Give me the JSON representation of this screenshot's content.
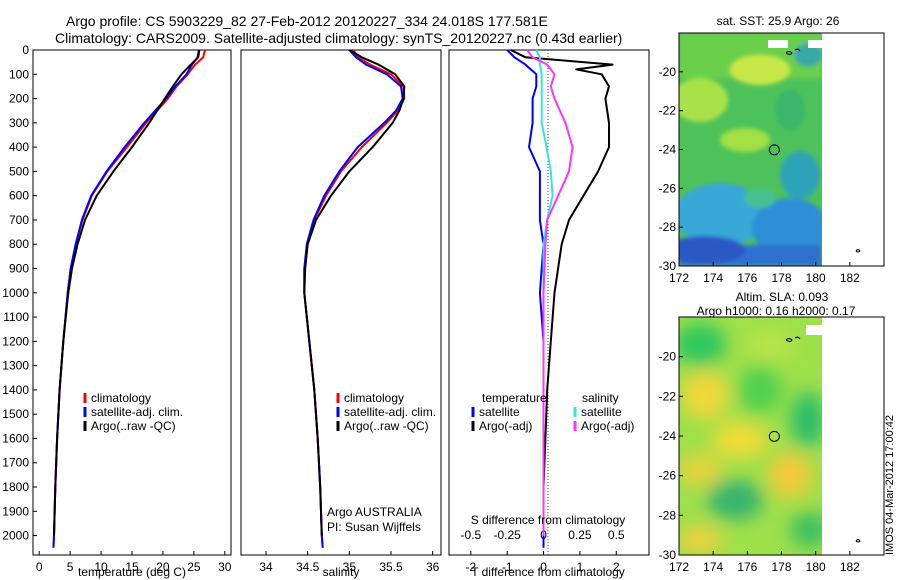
{
  "header": {
    "line1": "Argo profile: CS 5903229_82 27-Feb-2012 20120227_334 24.018S 177.581E",
    "line2": "Climatology: CARS2009. Satellite-adjusted climatology: synTS_20120227.nc (0.43d earlier)"
  },
  "side_label": "IMOS 04-Mar-2012 17:00:42",
  "colors": {
    "climatology": "#ff0000",
    "satellite": "#0000ff",
    "argo": "#000000",
    "salinity_satellite": "#33e6e6",
    "salinity_argo": "#ff33ff"
  },
  "chart_data": [
    {
      "type": "line",
      "xlabel": "temperature (deg C)",
      "ylabel": "",
      "xlim": [
        -1,
        31
      ],
      "ylim": [
        2080,
        0
      ],
      "xticks": [
        0,
        5,
        10,
        15,
        20,
        25,
        30
      ],
      "yticks": [
        0,
        100,
        200,
        300,
        400,
        500,
        600,
        700,
        800,
        900,
        1000,
        1100,
        1200,
        1300,
        1400,
        1500,
        1600,
        1700,
        1800,
        1900,
        2000
      ],
      "legend": [
        "climatology",
        "satellite-adj. clim.",
        "Argo(..raw -QC)"
      ],
      "legend_position": "bottom-center",
      "series": [
        {
          "name": "climatology",
          "depth": [
            0,
            30,
            60,
            100,
            150,
            200,
            300,
            400,
            500,
            600,
            700,
            800,
            900,
            1000,
            1200,
            1400,
            1600,
            1800,
            2000,
            2050
          ],
          "values": [
            26.8,
            26.5,
            25.2,
            24.0,
            22.2,
            20.8,
            17.3,
            14.2,
            11.0,
            8.5,
            7.0,
            5.9,
            5.1,
            4.6,
            3.9,
            3.3,
            2.9,
            2.6,
            2.4,
            2.3
          ]
        },
        {
          "name": "satellite-adj. clim.",
          "depth": [
            0,
            30,
            60,
            100,
            150,
            200,
            300,
            400,
            500,
            600,
            700,
            800,
            900,
            1000,
            1200,
            1400,
            1600,
            1800,
            2000,
            2050
          ],
          "values": [
            25.8,
            25.6,
            24.7,
            23.8,
            22.0,
            20.5,
            17.0,
            13.8,
            10.9,
            8.4,
            6.9,
            5.9,
            5.1,
            4.6,
            3.9,
            3.3,
            2.9,
            2.6,
            2.4,
            2.3
          ]
        },
        {
          "name": "Argo(..raw -QC)",
          "depth": [
            0,
            30,
            60,
            100,
            150,
            200,
            300,
            400,
            500,
            600,
            700,
            800,
            900,
            1000,
            1200,
            1400,
            1600,
            1800,
            2000
          ],
          "values": [
            25.9,
            25.7,
            24.5,
            23.0,
            21.6,
            20.3,
            17.8,
            15.0,
            12.0,
            9.3,
            7.4,
            6.2,
            5.3,
            4.7,
            3.9,
            3.3,
            2.9,
            2.6,
            2.4
          ]
        }
      ]
    },
    {
      "type": "line",
      "xlabel": "salinity",
      "ylabel": "",
      "xlim": [
        33.7,
        36.1
      ],
      "ylim": [
        2080,
        0
      ],
      "xticks": [
        34,
        34.5,
        35,
        35.5,
        36
      ],
      "legend": [
        "climatology",
        "satellite-adj. clim.",
        "Argo(..raw -QC)"
      ],
      "legend_position": "bottom-right",
      "annotation": [
        "Argo AUSTRALIA",
        "PI: Susan Wijffels"
      ],
      "series": [
        {
          "name": "climatology",
          "depth": [
            0,
            30,
            60,
            100,
            150,
            200,
            250,
            300,
            400,
            500,
            600,
            700,
            800,
            900,
            1000,
            1200,
            1400,
            1600,
            1800,
            2000,
            2050
          ],
          "values": [
            35.05,
            35.1,
            35.25,
            35.5,
            35.65,
            35.66,
            35.58,
            35.45,
            35.15,
            34.9,
            34.72,
            34.58,
            34.5,
            34.46,
            34.46,
            34.52,
            34.58,
            34.62,
            34.65,
            34.67,
            34.68
          ]
        },
        {
          "name": "satellite-adj. clim.",
          "depth": [
            0,
            30,
            60,
            100,
            150,
            200,
            250,
            300,
            400,
            500,
            600,
            700,
            800,
            900,
            1000,
            1200,
            1400,
            1600,
            1800,
            2000,
            2050
          ],
          "values": [
            35.0,
            35.08,
            35.2,
            35.45,
            35.62,
            35.64,
            35.56,
            35.42,
            35.1,
            34.88,
            34.7,
            34.57,
            34.49,
            34.46,
            34.46,
            34.52,
            34.58,
            34.62,
            34.65,
            34.67,
            34.68
          ]
        },
        {
          "name": "Argo(..raw -QC)",
          "depth": [
            0,
            30,
            60,
            100,
            150,
            200,
            250,
            300,
            400,
            500,
            600,
            700,
            800,
            900,
            1000,
            1200,
            1400,
            1600,
            1800,
            2000
          ],
          "values": [
            35.0,
            35.15,
            35.35,
            35.55,
            35.66,
            35.65,
            35.6,
            35.52,
            35.28,
            35.0,
            34.78,
            34.6,
            34.5,
            34.47,
            34.46,
            34.52,
            34.58,
            34.62,
            34.65,
            34.67
          ]
        }
      ]
    },
    {
      "type": "line",
      "xlabel": "T difference from climatology",
      "ylabel": "",
      "xlim": [
        -2.6,
        2.9
      ],
      "ylim": [
        2080,
        0
      ],
      "xticks": [
        -2,
        -1,
        0,
        1,
        2
      ],
      "top_axis_title": "S difference from climatology",
      "top_ticks": [
        "-0.5",
        "-0.25",
        "0",
        "0.25",
        "0.5"
      ],
      "top_tick_positions": [
        -2,
        -1,
        0,
        1,
        2
      ],
      "legend_temperature": {
        "title": "temperature",
        "items": [
          "satellite",
          "Argo(-adj)"
        ]
      },
      "legend_salinity": {
        "title": "salinity",
        "items": [
          "satellite",
          "Argo(-adj)"
        ]
      },
      "series": [
        {
          "name": "temperature satellite",
          "depth": [
            0,
            30,
            60,
            100,
            150,
            200,
            300,
            400,
            500,
            600,
            700,
            800,
            1000,
            1200,
            1400,
            1600,
            1800,
            2000,
            2050
          ],
          "values": [
            -1.0,
            -0.8,
            -0.5,
            -0.2,
            -0.2,
            -0.3,
            -0.3,
            -0.4,
            -0.1,
            -0.1,
            -0.1,
            0.0,
            -0.1,
            0.0,
            0.0,
            0.0,
            0.0,
            0.0,
            0.0
          ]
        },
        {
          "name": "temperature Argo(-adj)",
          "depth": [
            0,
            30,
            60,
            80,
            100,
            150,
            200,
            300,
            400,
            500,
            600,
            700,
            800,
            900,
            1000,
            1200,
            1400,
            1600,
            1800,
            2000
          ],
          "values": [
            -0.9,
            -0.5,
            1.9,
            0.9,
            1.6,
            1.8,
            1.7,
            1.8,
            1.8,
            1.5,
            1.1,
            0.7,
            0.5,
            0.4,
            0.3,
            0.2,
            0.1,
            0.05,
            0.0,
            0.0
          ]
        },
        {
          "name": "salinity satellite",
          "depth": [
            0,
            30,
            60,
            100,
            200,
            300,
            400,
            500,
            600,
            700,
            800,
            900,
            1000,
            1200,
            1400,
            1600,
            1800,
            2000
          ],
          "values": [
            -0.2,
            -0.1,
            -0.1,
            -0.05,
            -0.05,
            -0.05,
            0.08,
            0.2,
            0.25,
            0.1,
            0.0,
            0.0,
            0.0,
            0.0,
            0.0,
            0.0,
            0.0,
            0.0
          ]
        },
        {
          "name": "salinity Argo(-adj)",
          "depth": [
            0,
            30,
            60,
            100,
            150,
            200,
            300,
            400,
            500,
            600,
            700,
            800,
            1000,
            1200,
            1400,
            1600,
            1800,
            2000
          ],
          "values": [
            -0.45,
            -0.3,
            0.1,
            0.3,
            0.2,
            0.3,
            0.6,
            0.8,
            0.7,
            0.4,
            0.1,
            0.05,
            0.0,
            0.0,
            0.0,
            0.0,
            0.0,
            0.0
          ]
        }
      ]
    },
    {
      "type": "heatmap",
      "title": "sat. SST: 25.9 Argo: 26",
      "xlim": [
        172,
        184
      ],
      "ylim": [
        -30,
        -18
      ],
      "xticks": [
        172,
        174,
        176,
        178,
        180,
        182
      ],
      "yticks": [
        -20,
        -22,
        -24,
        -26,
        -28,
        -30
      ],
      "data_extent_lon": [
        172,
        180
      ],
      "marker": {
        "lon": 177.581,
        "lat": -24.018
      }
    },
    {
      "type": "heatmap",
      "title": "Altim. SLA: 0.093",
      "subtitle": "Argo h1000: 0.16 h2000: 0.17",
      "xlim": [
        172,
        184
      ],
      "ylim": [
        -30,
        -18
      ],
      "xticks": [
        172,
        174,
        176,
        178,
        180,
        182
      ],
      "yticks": [
        -20,
        -22,
        -24,
        -26,
        -28,
        -30
      ],
      "data_extent_lon": [
        172,
        180
      ],
      "marker": {
        "lon": 177.581,
        "lat": -24.018
      }
    }
  ]
}
